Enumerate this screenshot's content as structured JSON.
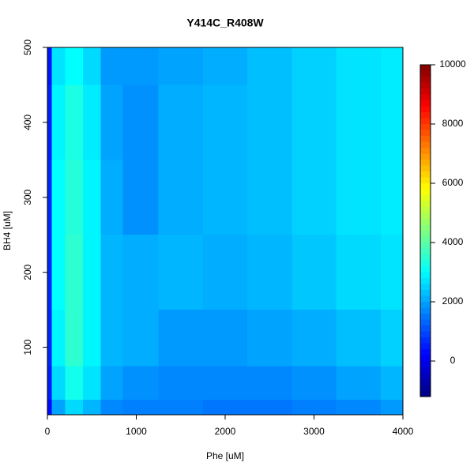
{
  "chart_data": {
    "type": "contour",
    "title": "Y414C_R408W",
    "x_label": "Phe [uM]",
    "y_label": "BH4 [uM]",
    "x": [
      0,
      100,
      300,
      500,
      700,
      1000,
      1500,
      2000,
      2500,
      3000,
      3500,
      4000
    ],
    "y": [
      10,
      50,
      100,
      200,
      300,
      400,
      500
    ],
    "z": [
      [
        300,
        2000,
        2600,
        2200,
        1700,
        1600,
        1600,
        1500,
        1500,
        1600,
        1700,
        1900
      ],
      [
        500,
        2600,
        3200,
        2700,
        2000,
        1800,
        1700,
        1700,
        1700,
        1800,
        2000,
        2200
      ],
      [
        600,
        2900,
        3500,
        2900,
        2200,
        2100,
        1900,
        1900,
        2000,
        2100,
        2300,
        2500
      ],
      [
        600,
        3000,
        3500,
        2900,
        2200,
        2100,
        2200,
        2100,
        2200,
        2400,
        2600,
        2700
      ],
      [
        600,
        3000,
        3400,
        2900,
        2100,
        1800,
        2100,
        2200,
        2300,
        2500,
        2700,
        2800
      ],
      [
        500,
        2900,
        3300,
        2800,
        2000,
        1800,
        2100,
        2200,
        2300,
        2500,
        2700,
        2800
      ],
      [
        400,
        2700,
        3000,
        2600,
        1900,
        1900,
        2000,
        2100,
        2300,
        2500,
        2700,
        2800
      ]
    ],
    "xlim": [
      0,
      4000
    ],
    "ylim": [
      10,
      500
    ],
    "xticks": [
      0,
      1000,
      2000,
      3000,
      4000
    ],
    "yticks": [
      100,
      200,
      300,
      400,
      500
    ],
    "zlim": [
      -1200,
      10000
    ],
    "zticks": [
      0,
      2000,
      4000,
      6000,
      8000,
      10000
    ],
    "colorscale": [
      "#00007F",
      "#0000FF",
      "#007FFF",
      "#00FFFF",
      "#7FFF7F",
      "#FFFF00",
      "#FF7F00",
      "#FF0000",
      "#7F0000"
    ]
  }
}
